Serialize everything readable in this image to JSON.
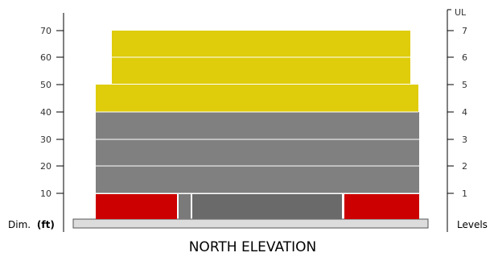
{
  "left_axis": {
    "label_prefix": "Dim.",
    "label_unit": "(ft)",
    "ticks": [
      "10",
      "20",
      "30",
      "40",
      "50",
      "60",
      "70"
    ]
  },
  "right_axis": {
    "label": "Levels",
    "top_label": "UL",
    "ticks": [
      "1",
      "2",
      "3",
      "4",
      "5",
      "6",
      "7"
    ]
  },
  "title": "NORTH ELEVATION",
  "colors": {
    "residential": "#dfcc0b",
    "office": "#808080",
    "ground_retail": "#cc0000",
    "ground_core": "#6a6a6a",
    "ground_core_light": "#7a7a7a",
    "floor_line": "#ffffff",
    "base": "#dcdcdc",
    "axis": "#000000"
  },
  "building": {
    "floors": [
      {
        "level": 1,
        "use": "ground"
      },
      {
        "level": 2,
        "use": "office"
      },
      {
        "level": 3,
        "use": "office"
      },
      {
        "level": 4,
        "use": "office"
      },
      {
        "level": 5,
        "use": "residential"
      },
      {
        "level": 6,
        "use": "residential"
      },
      {
        "level": 7,
        "use": "residential"
      }
    ]
  }
}
